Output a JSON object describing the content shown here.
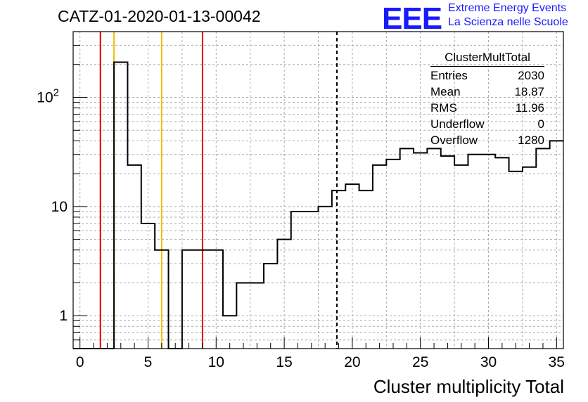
{
  "header": {
    "title": "CATZ-01-2020-01-13-00042",
    "logo_text": "EEE",
    "logo_line1": "Extreme Energy Events",
    "logo_line2": "La Scienza nelle Scuole"
  },
  "stats_box": {
    "title": "ClusterMultTotal",
    "rows": [
      {
        "label": "Entries",
        "value": "2030"
      },
      {
        "label": "Mean",
        "value": "18.87"
      },
      {
        "label": "RMS",
        "value": "11.96"
      },
      {
        "label": "Underflow",
        "value": "0"
      },
      {
        "label": "Overflow",
        "value": "1280"
      }
    ]
  },
  "chart_data": {
    "type": "bar",
    "title": "CATZ-01-2020-01-13-00042",
    "xlabel": "Cluster multiplicity Total",
    "ylabel": "",
    "xlim": [
      -0.5,
      35.5
    ],
    "ylim": [
      0.5,
      400
    ],
    "y_scale": "log",
    "grid": true,
    "bin_width": 1,
    "bin_low_edges": [
      -0.5,
      0.5,
      1.5,
      2.5,
      3.5,
      4.5,
      5.5,
      6.5,
      7.5,
      8.5,
      9.5,
      10.5,
      11.5,
      12.5,
      13.5,
      14.5,
      15.5,
      16.5,
      17.5,
      18.5,
      19.5,
      20.5,
      21.5,
      22.5,
      23.5,
      24.5,
      25.5,
      26.5,
      27.5,
      28.5,
      29.5,
      30.5,
      31.5,
      32.5,
      33.5,
      34.5
    ],
    "values": [
      0,
      0,
      0,
      210,
      24,
      7,
      4,
      0,
      4,
      4,
      4,
      1,
      2,
      2,
      3,
      5,
      9,
      9,
      10,
      14,
      16,
      14,
      24,
      27,
      34,
      31,
      34,
      29,
      24,
      30,
      30,
      28,
      21,
      23,
      34,
      40
    ],
    "x_ticks": [
      0,
      5,
      10,
      15,
      20,
      25,
      30,
      35
    ],
    "y_ticks": [
      {
        "value": 1,
        "label": "1"
      },
      {
        "value": 10,
        "label": "10"
      },
      {
        "value": 100,
        "label": "10",
        "exponent": "2"
      }
    ],
    "vertical_markers": [
      {
        "x": 1.5,
        "color": "#e00000",
        "style": "solid"
      },
      {
        "x": 2.5,
        "color": "#f0c000",
        "style": "solid"
      },
      {
        "x": 6.0,
        "color": "#f0c000",
        "style": "solid"
      },
      {
        "x": 9.0,
        "color": "#e00000",
        "style": "solid"
      },
      {
        "x": 18.87,
        "color": "#000000",
        "style": "dashed"
      }
    ]
  }
}
